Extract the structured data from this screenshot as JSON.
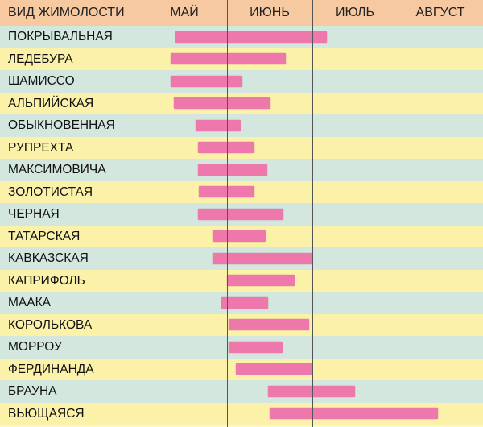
{
  "chart_data": {
    "type": "gantt-bar",
    "title": "",
    "label_header": "ВИД ЖИМОЛОСТИ",
    "months": [
      "МАЙ",
      "ИЮНЬ",
      "ИЮЛЬ",
      "АВГУСТ"
    ],
    "x_unit": "month position (0 = start of May, 4 = end of August)",
    "rows": [
      {
        "name": "ПОКРЫВАЛЬНАЯ",
        "start": 0.4,
        "end": 2.17
      },
      {
        "name": "ЛЕДЕБУРА",
        "start": 0.34,
        "end": 1.69
      },
      {
        "name": "ШАМИССО",
        "start": 0.34,
        "end": 1.18
      },
      {
        "name": "АЛЬПИЙСКАЯ",
        "start": 0.38,
        "end": 1.51
      },
      {
        "name": "ОБЫКНОВЕННАЯ",
        "start": 0.63,
        "end": 1.16
      },
      {
        "name": "РУПРЕХТА",
        "start": 0.66,
        "end": 1.32
      },
      {
        "name": "МАКСИМОВИЧА",
        "start": 0.66,
        "end": 1.47
      },
      {
        "name": "ЗОЛОТИСТАЯ",
        "start": 0.67,
        "end": 1.32
      },
      {
        "name": "ЧЕРНАЯ",
        "start": 0.66,
        "end": 1.66
      },
      {
        "name": "ТАТАРСКАЯ",
        "start": 0.83,
        "end": 1.45
      },
      {
        "name": "КАВКАЗСКАЯ",
        "start": 0.83,
        "end": 1.99
      },
      {
        "name": "КАПРИФОЛЬ",
        "start": 1.0,
        "end": 1.79
      },
      {
        "name": "МААКА",
        "start": 0.93,
        "end": 1.48
      },
      {
        "name": "КОРОЛЬКОВА",
        "start": 1.02,
        "end": 1.96
      },
      {
        "name": "МОРРОУ",
        "start": 1.02,
        "end": 1.65
      },
      {
        "name": "ФЕРДИНАНДА",
        "start": 1.1,
        "end": 1.99
      },
      {
        "name": "БРАУНА",
        "start": 1.48,
        "end": 2.5
      },
      {
        "name": "ВЬЮЩАЯСЯ",
        "start": 1.5,
        "end": 3.47
      }
    ],
    "colors": {
      "bar": "#ee78ab",
      "header": "#f6c9a0",
      "row_blue": "#d3e7df",
      "row_yellow": "#fbf1a8",
      "grid": "#555555"
    },
    "grid": true,
    "legend": "none"
  }
}
